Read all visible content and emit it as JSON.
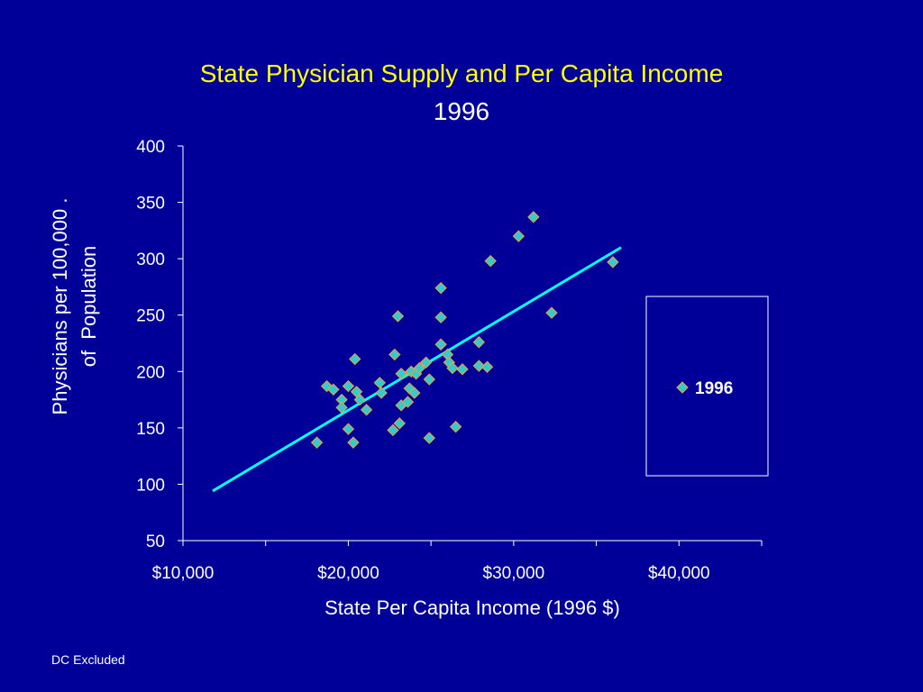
{
  "slide": {
    "title": "State Physician Supply and Per Capita Income",
    "subtitle": "1996",
    "footnote": "DC Excluded"
  },
  "colors": {
    "background": "#000099",
    "title": "#FFFF00",
    "text": "#FFFFFF",
    "marker_fill": "#33CCCC",
    "marker_edge": "#FF9933",
    "trendline": "#00FFFF"
  },
  "chart_data": {
    "type": "scatter",
    "title": "State Physician Supply and Per Capita Income",
    "subtitle": "1996",
    "xlabel": "State Per Capita Income (1996 $)",
    "ylabel_lines": [
      "Physicians per 100,000 .",
      "of  Population"
    ],
    "xlim": [
      10000,
      45000
    ],
    "ylim": [
      50,
      400
    ],
    "x_ticks": [
      10000,
      20000,
      30000,
      40000
    ],
    "x_tick_labels": [
      "$10,000",
      "$20,000",
      "$30,000",
      "$40,000"
    ],
    "y_ticks": [
      50,
      100,
      150,
      200,
      250,
      300,
      350,
      400
    ],
    "y_tick_labels": [
      "50",
      "100",
      "150",
      "200",
      "250",
      "300",
      "350",
      "400"
    ],
    "grid": false,
    "legend_position": "right",
    "series": [
      {
        "name": "1996",
        "marker": "diamond",
        "points": [
          [
            18100,
            137
          ],
          [
            18700,
            187
          ],
          [
            19100,
            184
          ],
          [
            19600,
            175
          ],
          [
            19600,
            168
          ],
          [
            20000,
            187
          ],
          [
            20000,
            149
          ],
          [
            20300,
            137
          ],
          [
            20400,
            211
          ],
          [
            20500,
            182
          ],
          [
            20700,
            175
          ],
          [
            21100,
            166
          ],
          [
            21900,
            190
          ],
          [
            22000,
            181
          ],
          [
            22700,
            148
          ],
          [
            22800,
            215
          ],
          [
            23000,
            249
          ],
          [
            23100,
            154
          ],
          [
            23200,
            170
          ],
          [
            23200,
            198
          ],
          [
            23600,
            173
          ],
          [
            23700,
            185
          ],
          [
            23800,
            200
          ],
          [
            24000,
            181
          ],
          [
            24100,
            198
          ],
          [
            24300,
            203
          ],
          [
            24700,
            208
          ],
          [
            24900,
            141
          ],
          [
            24900,
            193
          ],
          [
            25600,
            274
          ],
          [
            25600,
            248
          ],
          [
            25600,
            224
          ],
          [
            26000,
            215
          ],
          [
            26100,
            208
          ],
          [
            26300,
            203
          ],
          [
            26500,
            151
          ],
          [
            26900,
            202
          ],
          [
            27900,
            226
          ],
          [
            27900,
            205
          ],
          [
            28400,
            204
          ],
          [
            28600,
            298
          ],
          [
            30300,
            320
          ],
          [
            31200,
            337
          ],
          [
            32300,
            252
          ],
          [
            36000,
            297
          ]
        ]
      }
    ],
    "trendline": {
      "type": "linear",
      "x_start": 11800,
      "y_start": 94,
      "x_end": 36500,
      "y_end": 310
    }
  }
}
